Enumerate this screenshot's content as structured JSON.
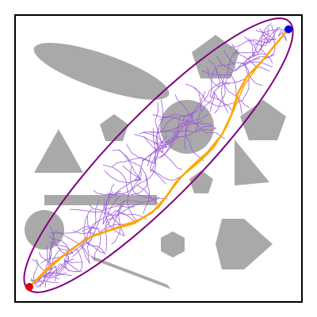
{
  "colors": {
    "background": "#ffffff",
    "border": "#000000",
    "obstacle": "#a9a9a9",
    "ellipse": "#800080",
    "tree": "#9b59d6",
    "path": "#ffa500",
    "start": "#e00000",
    "goal": "#0000e0"
  },
  "legend": []
}
